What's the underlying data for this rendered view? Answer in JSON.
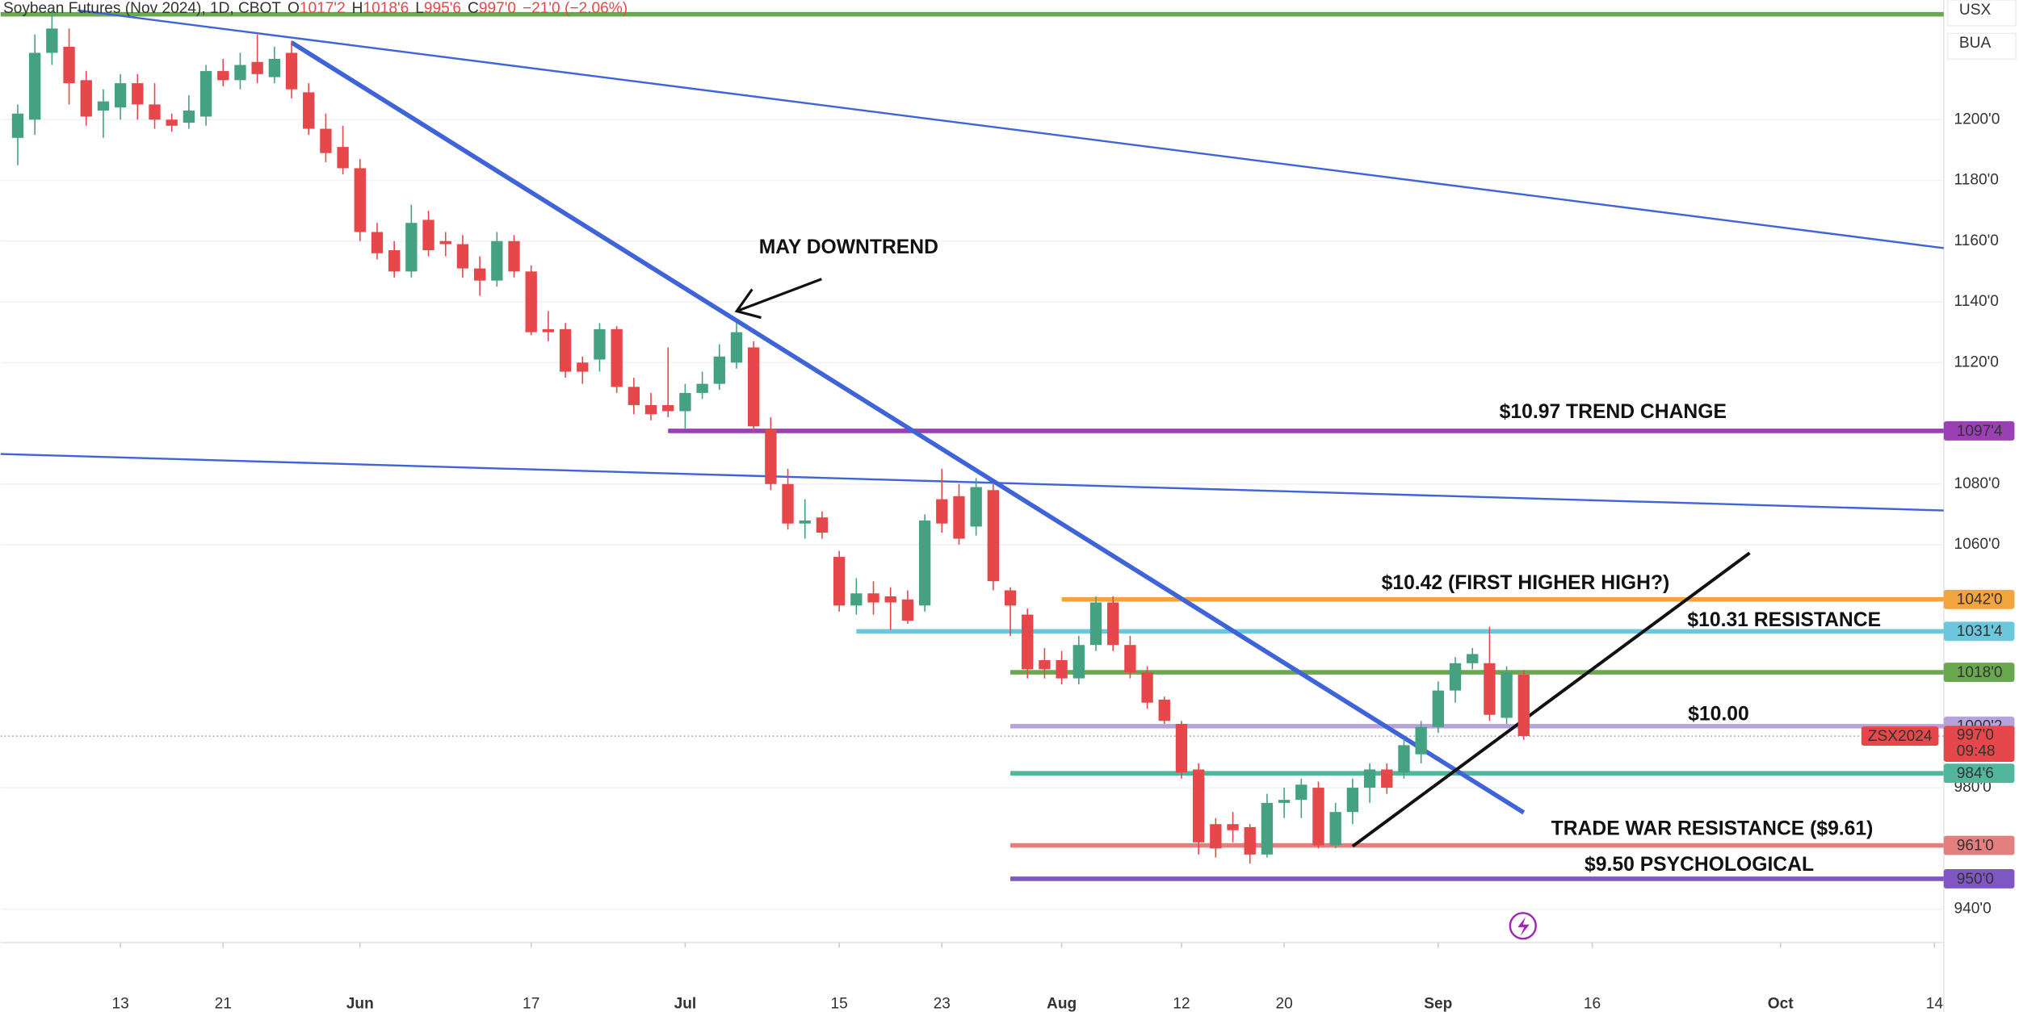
{
  "chart_data": {
    "type": "candlestick",
    "title": "Soybean Futures (Nov 2024), 1D, CBOT",
    "header_stats": [
      {
        "key": "O",
        "value": 1017.25,
        "label": "1017'2"
      },
      {
        "key": "H",
        "value": 1018.75,
        "label": "1018'6"
      },
      {
        "key": "L",
        "value": 995.75,
        "label": "995'6"
      },
      {
        "key": "C",
        "value": 997,
        "label": "997'0"
      }
    ],
    "change": {
      "value": -21,
      "percent": -2.06,
      "label": "−21'0 (−2.06%)"
    },
    "unit_labels": [
      "USX",
      "BUA"
    ],
    "up_color": "#44a283",
    "down_color": "#e5474b",
    "grid": true,
    "xlim": [
      -7,
      106.54
    ],
    "ylim": [
      929,
      1239.4
    ],
    "xticks": [
      {
        "value": 0,
        "label": "13"
      },
      {
        "value": 6,
        "label": "21"
      },
      {
        "value": 14,
        "label": "Jun"
      },
      {
        "value": 24,
        "label": "17"
      },
      {
        "value": 33,
        "label": "Jul"
      },
      {
        "value": 42,
        "label": "15"
      },
      {
        "value": 48,
        "label": "23"
      },
      {
        "value": 55,
        "label": "Aug"
      },
      {
        "value": 62,
        "label": "12"
      },
      {
        "value": 68,
        "label": "20"
      },
      {
        "value": 77,
        "label": "Sep"
      },
      {
        "value": 86,
        "label": "16"
      },
      {
        "value": 97,
        "label": "Oct"
      },
      {
        "value": 106,
        "label": "14"
      }
    ],
    "yticks": [
      {
        "value": 940,
        "label": "940'0"
      },
      {
        "value": 980,
        "label": "980'0"
      },
      {
        "value": 1060,
        "label": "1060'0"
      },
      {
        "value": 1080,
        "label": "1080'0"
      },
      {
        "value": 1120,
        "label": "1120'0"
      },
      {
        "value": 1140,
        "label": "1140'0"
      },
      {
        "value": 1160,
        "label": "1160'0"
      },
      {
        "value": 1180,
        "label": "1180'0"
      },
      {
        "value": 1200,
        "label": "1200'0"
      }
    ],
    "x": [
      -6,
      -5,
      -4,
      -3,
      -2,
      -1,
      0,
      1,
      2,
      3,
      4,
      5,
      6,
      7,
      8,
      9,
      10,
      11,
      12,
      13,
      14,
      15,
      16,
      17,
      18,
      19,
      20,
      21,
      22,
      23,
      24,
      25,
      26,
      27,
      28,
      29,
      30,
      31,
      32,
      33,
      34,
      35,
      36,
      37,
      38,
      39,
      40,
      41,
      42,
      43,
      44,
      45,
      46,
      47,
      48,
      49,
      50,
      51,
      52,
      53,
      54,
      55,
      56,
      57,
      58,
      59,
      60,
      61,
      62,
      63,
      64,
      65,
      66,
      67,
      68,
      69,
      70,
      71,
      72,
      73,
      74,
      75,
      76,
      77,
      78,
      79,
      80,
      81,
      82
    ],
    "open": [
      1194,
      1200,
      1222,
      1224,
      1213,
      1203,
      1204,
      1212,
      1205,
      1200,
      1199,
      1201,
      1216,
      1213,
      1219,
      1214,
      1222,
      1209,
      1197,
      1191,
      1184,
      1163,
      1157,
      1150,
      1167,
      1160,
      1159,
      1151,
      1147,
      1160,
      1150,
      1131,
      1131,
      1120,
      1121,
      1131,
      1112,
      1106,
      1106,
      1104,
      1110,
      1113,
      1120,
      1125,
      1098,
      1080,
      1067,
      1069,
      1056,
      1040,
      1044,
      1043,
      1042,
      1040,
      1075,
      1076,
      1066,
      1078,
      1045,
      1037,
      1022,
      1022,
      1016,
      1027,
      1041,
      1027,
      1018,
      1009,
      1001,
      986,
      968,
      968,
      967,
      958,
      975,
      976,
      980,
      961,
      972,
      980,
      986,
      985,
      991,
      1000,
      1012,
      1021,
      1021,
      1003,
      1017.25
    ],
    "high": [
      1205,
      1228,
      1236,
      1230,
      1216,
      1210,
      1215,
      1215,
      1212,
      1202,
      1208,
      1218,
      1220,
      1222,
      1228,
      1224,
      1226,
      1212,
      1202,
      1198,
      1187,
      1166,
      1160,
      1172,
      1170,
      1163,
      1162,
      1155,
      1163,
      1162,
      1152,
      1137,
      1133,
      1122,
      1133,
      1132,
      1115,
      1110,
      1125,
      1113,
      1117,
      1126,
      1133,
      1127,
      1102,
      1085,
      1075,
      1071,
      1058,
      1049,
      1048,
      1046,
      1045,
      1070,
      1085,
      1080,
      1082,
      1080,
      1046,
      1039,
      1026,
      1025,
      1030,
      1043,
      1043,
      1030,
      1020,
      1010,
      1002,
      988,
      970,
      972,
      968,
      978,
      980,
      983,
      982,
      975,
      983,
      988,
      988,
      996,
      1002,
      1015,
      1023,
      1026,
      1033,
      1020,
      1018.75
    ],
    "low": [
      1185,
      1195,
      1218,
      1205,
      1198,
      1194,
      1200,
      1200,
      1197,
      1196,
      1197,
      1198,
      1211,
      1210,
      1212,
      1212,
      1207,
      1195,
      1186,
      1182,
      1160,
      1154,
      1148,
      1148,
      1155,
      1155,
      1148,
      1142,
      1145,
      1148,
      1129,
      1127,
      1115,
      1113,
      1117,
      1110,
      1103,
      1101,
      1102,
      1098,
      1108,
      1111,
      1118,
      1097,
      1078,
      1065,
      1062,
      1062,
      1038,
      1037,
      1037,
      1032,
      1034,
      1038,
      1064,
      1060,
      1063,
      1045,
      1030,
      1016,
      1016,
      1014,
      1014,
      1025,
      1025,
      1016,
      1006,
      1001,
      983,
      958,
      957,
      962,
      955,
      957,
      970,
      970,
      960,
      960,
      968,
      975,
      978,
      983,
      988,
      998,
      1008,
      1019,
      1002,
      1001,
      995.75
    ],
    "close": [
      1202,
      1222,
      1230,
      1212,
      1201,
      1206,
      1212,
      1205,
      1200,
      1198,
      1203,
      1216,
      1213,
      1218,
      1215,
      1220,
      1210,
      1197,
      1189,
      1184,
      1163,
      1156,
      1150,
      1166,
      1157,
      1159,
      1151,
      1147,
      1160,
      1150,
      1130,
      1130,
      1117,
      1117,
      1131,
      1112,
      1106,
      1103,
      1104,
      1110,
      1113,
      1122,
      1130,
      1099,
      1080,
      1067,
      1068,
      1064,
      1040,
      1044,
      1041,
      1041,
      1035,
      1068,
      1067,
      1062,
      1079,
      1048,
      1040,
      1019,
      1019,
      1016,
      1027,
      1041,
      1027,
      1018,
      1008,
      1002,
      985,
      962,
      960,
      966,
      958,
      975,
      976,
      981,
      961,
      972,
      980,
      986,
      980,
      994,
      1000,
      1012,
      1021,
      1024,
      1004,
      1018,
      997
    ],
    "levels": [
      {
        "value": 1234.7,
        "color": "#6aa84f",
        "start": -7
      },
      {
        "value": 1097.5,
        "label": "1097'4",
        "color": "#9b3fb5",
        "start": 32
      },
      {
        "value": 1042,
        "label": "1042'0",
        "color": "#f2a53f",
        "start": 55
      },
      {
        "value": 1031.5,
        "label": "1031'4",
        "color": "#6cc7dc",
        "start": 43
      },
      {
        "value": 1018,
        "label": "1018'0",
        "color": "#6aa84f",
        "start": 52
      },
      {
        "value": 1000.25,
        "label": "1000'2",
        "color": "#b7a3dc",
        "start": 52
      },
      {
        "value": 984.75,
        "label": "984'6",
        "color": "#52b69c",
        "start": 52
      },
      {
        "value": 961,
        "label": "961'0",
        "color": "#e57f7f",
        "start": 52
      },
      {
        "value": 950,
        "label": "950'0",
        "color": "#7e57c2",
        "start": 52
      }
    ],
    "trendlines": [
      {
        "x": [
          10,
          82
        ],
        "y": [
          1225.4,
          971.8
        ],
        "color": "#3f63d8",
        "width": 3.5
      },
      {
        "x": [
          -2.5,
          106.54
        ],
        "y": [
          1236,
          1157.7
        ],
        "color": "#3f63d8",
        "width": 1.5
      },
      {
        "x": [
          -7,
          106.54
        ],
        "y": [
          1089.9,
          1071.3
        ],
        "color": "#3f63d8",
        "width": 1.5
      },
      {
        "x": [
          72,
          95.2
        ],
        "y": [
          960.7,
          1057.3
        ],
        "color": "#111111",
        "width": 2.5
      }
    ],
    "current": {
      "value": 997,
      "label": "997'0",
      "symbol": "ZSX2024",
      "countdown": "09:48",
      "color": "#e5474b"
    },
    "annotations": [
      "MAY DOWNTREND",
      "$10.97 TREND CHANGE",
      "$10.42 (FIRST HIGHER HIGH?)",
      "$10.31 RESISTANCE",
      "$10.00",
      "TRADE WAR RESISTANCE ($9.61)",
      "$9.50 PSYCHOLOGICAL"
    ]
  }
}
